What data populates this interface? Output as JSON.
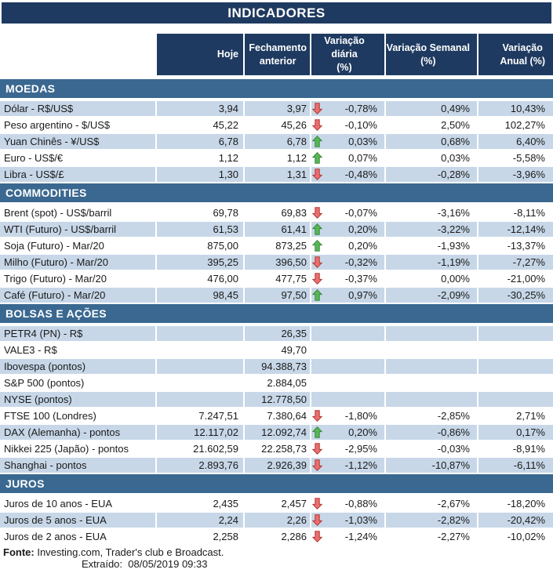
{
  "title": "INDICADORES",
  "header": {
    "hoje": "Hoje",
    "fech": "Fechamento\nanterior",
    "daily": "Variação diária\n(%)",
    "weekly": "Variação Semanal\n(%)",
    "annual": "Variação\nAnual (%)"
  },
  "colors": {
    "title_bg": "#1F3A60",
    "section_bg": "#3A6890",
    "row_shade": "#C7D7E8",
    "arrow_up": "#57B757",
    "arrow_up_border": "#3C8A3C",
    "arrow_down": "#E97070",
    "arrow_down_border": "#B43B36"
  },
  "sections": [
    {
      "name": "MOEDAS",
      "rows": [
        {
          "label": "Dólar - R$/US$",
          "hoje": "3,94",
          "fech": "3,97",
          "arrow": "down",
          "daily": "-0,78%",
          "weekly": "0,49%",
          "annual": "10,43%"
        },
        {
          "label": "Peso argentino - $/US$",
          "hoje": "45,22",
          "fech": "45,26",
          "arrow": "down",
          "daily": "-0,10%",
          "weekly": "2,50%",
          "annual": "102,27%"
        },
        {
          "label": "Yuan Chinês - ¥/US$",
          "hoje": "6,78",
          "fech": "6,78",
          "arrow": "up",
          "daily": "0,03%",
          "weekly": "0,68%",
          "annual": "6,40%"
        },
        {
          "label": "Euro - US$/€",
          "hoje": "1,12",
          "fech": "1,12",
          "arrow": "up",
          "daily": "0,07%",
          "weekly": "0,03%",
          "annual": "-5,58%"
        },
        {
          "label": "Libra - US$/£",
          "hoje": "1,30",
          "fech": "1,31",
          "arrow": "down",
          "daily": "-0,48%",
          "weekly": "-0,28%",
          "annual": "-3,96%"
        }
      ]
    },
    {
      "name": "COMMODITIES",
      "rows": [
        {
          "label": "Brent (spot) - US$/barril",
          "hoje": "69,78",
          "fech": "69,83",
          "arrow": "down",
          "daily": "-0,07%",
          "weekly": "-3,16%",
          "annual": "-8,11%"
        },
        {
          "label": "WTI (Futuro) - US$/barril",
          "hoje": "61,53",
          "fech": "61,41",
          "arrow": "up",
          "daily": "0,20%",
          "weekly": "-3,22%",
          "annual": "-12,14%"
        },
        {
          "label": "Soja (Futuro) - Mar/20",
          "hoje": "875,00",
          "fech": "873,25",
          "arrow": "up",
          "daily": "0,20%",
          "weekly": "-1,93%",
          "annual": "-13,37%"
        },
        {
          "label": "Milho (Futuro) - Mar/20",
          "hoje": "395,25",
          "fech": "396,50",
          "arrow": "down",
          "daily": "-0,32%",
          "weekly": "-1,19%",
          "annual": "-7,27%"
        },
        {
          "label": "Trigo (Futuro) - Mar/20",
          "hoje": "476,00",
          "fech": "477,75",
          "arrow": "down",
          "daily": "-0,37%",
          "weekly": "0,00%",
          "annual": "-21,00%"
        },
        {
          "label": "Café (Futuro) - Mar/20",
          "hoje": "98,45",
          "fech": "97,50",
          "arrow": "up",
          "daily": "0,97%",
          "weekly": "-2,09%",
          "annual": "-30,25%"
        }
      ]
    },
    {
      "name": "BOLSAS E AÇÕES",
      "rows": [
        {
          "label": "PETR4 (PN) - R$",
          "hoje": "",
          "fech": "26,35",
          "arrow": "none",
          "daily": "",
          "weekly": "",
          "annual": ""
        },
        {
          "label": "VALE3 - R$",
          "hoje": "",
          "fech": "49,70",
          "arrow": "none",
          "daily": "",
          "weekly": "",
          "annual": ""
        },
        {
          "label": "Ibovespa (pontos)",
          "hoje": "",
          "fech": "94.388,73",
          "arrow": "none",
          "daily": "",
          "weekly": "",
          "annual": ""
        },
        {
          "label": "S&P 500 (pontos)",
          "hoje": "",
          "fech": "2.884,05",
          "arrow": "none",
          "daily": "",
          "weekly": "",
          "annual": ""
        },
        {
          "label": "NYSE (pontos)",
          "hoje": "",
          "fech": "12.778,50",
          "arrow": "none",
          "daily": "",
          "weekly": "",
          "annual": ""
        },
        {
          "label": "FTSE 100 (Londres)",
          "hoje": "7.247,51",
          "fech": "7.380,64",
          "arrow": "down",
          "daily": "-1,80%",
          "weekly": "-2,85%",
          "annual": "2,71%"
        },
        {
          "label": "DAX (Alemanha) - pontos",
          "hoje": "12.117,02",
          "fech": "12.092,74",
          "arrow": "up",
          "daily": "0,20%",
          "weekly": "-0,86%",
          "annual": "0,17%"
        },
        {
          "label": "Nikkei 225 (Japão) - pontos",
          "hoje": "21.602,59",
          "fech": "22.258,73",
          "arrow": "down",
          "daily": "-2,95%",
          "weekly": "-0,03%",
          "annual": "-8,91%"
        },
        {
          "label": "Shanghai - pontos",
          "hoje": "2.893,76",
          "fech": "2.926,39",
          "arrow": "down",
          "daily": "-1,12%",
          "weekly": "-10,87%",
          "annual": "-6,11%"
        }
      ]
    },
    {
      "name": "JUROS",
      "rows": [
        {
          "label": "Juros de 10 anos - EUA",
          "hoje": "2,435",
          "fech": "2,457",
          "arrow": "down",
          "daily": "-0,88%",
          "weekly": "-2,67%",
          "annual": "-18,20%"
        },
        {
          "label": "Juros de 5 anos - EUA",
          "hoje": "2,24",
          "fech": "2,26",
          "arrow": "down",
          "daily": "-1,03%",
          "weekly": "-2,82%",
          "annual": "-20,42%"
        },
        {
          "label": "Juros de 2 anos - EUA",
          "hoje": "2,258",
          "fech": "2,286",
          "arrow": "down",
          "daily": "-1,24%",
          "weekly": "-2,27%",
          "annual": "-10,02%"
        }
      ]
    }
  ],
  "footer": {
    "fonte_label": "Fonte:",
    "fonte_text": "Investing.com, Trader's club e Broadcast.",
    "extraido_label": "Extraído:",
    "extraido_value": "08/05/2019 09:33"
  }
}
